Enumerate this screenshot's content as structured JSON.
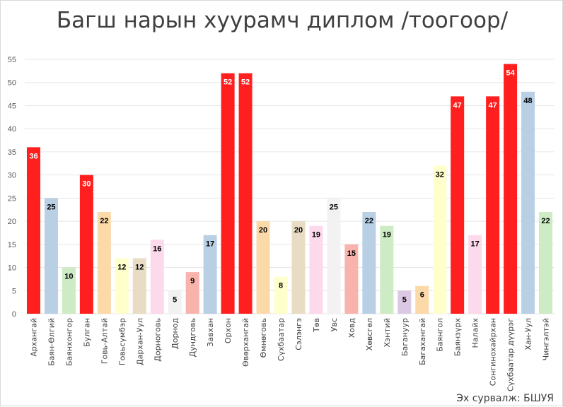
{
  "chart_data": {
    "type": "bar",
    "title": "Багш нарын хуурамч диплом /тоогоор/",
    "xlabel": "",
    "ylabel": "",
    "ylim": [
      0,
      55
    ],
    "yticks": [
      0,
      5,
      10,
      15,
      20,
      25,
      30,
      35,
      40,
      45,
      50,
      55
    ],
    "grid": true,
    "legend": "none",
    "categories": [
      "Архангай",
      "Баян-Өлгий",
      "Баянхонгор",
      "Булган",
      "Говь-Алтай",
      "Говьсүмбэр",
      "Дархан-Уул",
      "Дорноговь",
      "Дорнод",
      "Дундговь",
      "Завхан",
      "Орхон",
      "Өвөрхангай",
      "Өмнөговь",
      "Сүхбаатар",
      "Сэлэнгэ",
      "Төв",
      "Увс",
      "Ховд",
      "Хөвсгөл",
      "Хэнтий",
      "Багануур",
      "Багахангай",
      "Баянгол",
      "Баянзүрх",
      "Налайх",
      "Сонгинохайрхан",
      "Сүхбаатар дүүрэг",
      "Хан-Уул",
      "Чингэлтэй"
    ],
    "values": [
      36,
      25,
      10,
      30,
      22,
      12,
      12,
      16,
      5,
      9,
      17,
      52,
      52,
      20,
      8,
      20,
      19,
      25,
      15,
      22,
      19,
      5,
      6,
      32,
      47,
      17,
      47,
      54,
      48,
      22
    ],
    "bar_colors": [
      "#ff1f1f",
      "#b8cfe4",
      "#cdebc4",
      "#ff1f1f",
      "#fcd9a8",
      "#ffffcc",
      "#e8dcc4",
      "#fdd9ec",
      "#f2f2f2",
      "#f7b3ac",
      "#b8cfe4",
      "#ff1f1f",
      "#ff1f1f",
      "#fcd9a8",
      "#ffffcc",
      "#e8dcc4",
      "#fdd9ec",
      "#f2f2f2",
      "#f7b3ac",
      "#b8cfe4",
      "#cdebc4",
      "#dbc9e3",
      "#fcd9a8",
      "#ffffcc",
      "#ff1f1f",
      "#fdd9ec",
      "#ff1f1f",
      "#ff1f1f",
      "#b8cfe4",
      "#cdebc4"
    ],
    "label_colors": [
      "#ffffff",
      "#000000",
      "#000000",
      "#ffffff",
      "#000000",
      "#000000",
      "#000000",
      "#000000",
      "#000000",
      "#000000",
      "#000000",
      "#ffffff",
      "#ffffff",
      "#000000",
      "#000000",
      "#000000",
      "#000000",
      "#000000",
      "#000000",
      "#000000",
      "#000000",
      "#000000",
      "#000000",
      "#000000",
      "#ffffff",
      "#000000",
      "#ffffff",
      "#ffffff",
      "#000000",
      "#000000"
    ]
  },
  "source": "Эх сурвалж: БШУЯ",
  "colors": {
    "grid": "#e6e6e6",
    "axis_text": "#595959",
    "title": "#404040"
  }
}
